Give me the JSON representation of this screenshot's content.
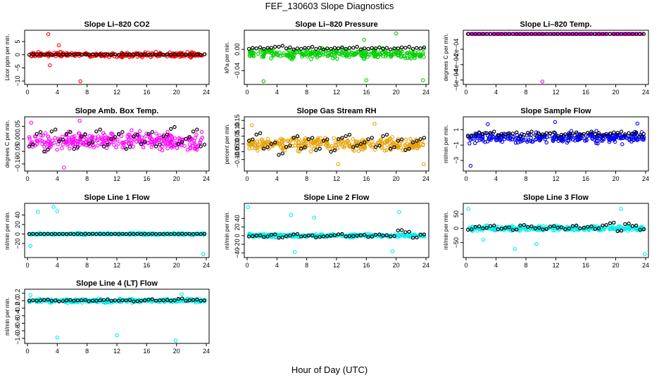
{
  "figure": {
    "title": "FEF_130603  Slope Diagnostics",
    "xlabel": "Hour of Day (UTC)"
  },
  "chart_data": [
    {
      "type": "scatter",
      "title": "Slope Li–820 CO2",
      "ylabel": "Licor ppm per min.",
      "xlim": [
        0,
        24
      ],
      "xticks": [
        0,
        4,
        8,
        12,
        16,
        20,
        24
      ],
      "ylim": [
        -10.5,
        8.5
      ],
      "yticks": [
        -10,
        -5,
        0,
        5
      ],
      "ytick_labels": [
        "−10",
        "−5",
        "0",
        "5"
      ],
      "color": "#ff0000",
      "center": 0,
      "spread": 1.2,
      "hourly": [
        0,
        0,
        0,
        0,
        0,
        0,
        0,
        0,
        0,
        0,
        0,
        0,
        0,
        0,
        0,
        0,
        0,
        0,
        0,
        0,
        0,
        0,
        0,
        0,
        0
      ],
      "outliers": [
        [
          2.8,
          7.8
        ],
        [
          3.0,
          -4.0
        ],
        [
          7.1,
          -10.1
        ],
        [
          4.2,
          3.6
        ]
      ]
    },
    {
      "type": "scatter",
      "title": "Slope Li–820 Pressure",
      "ylabel": "kPa per min.",
      "xlim": [
        0,
        24
      ],
      "xticks": [
        0,
        4,
        8,
        12,
        16,
        20,
        24
      ],
      "ylim": [
        -0.062,
        0.032
      ],
      "yticks": [
        -0.04,
        0.0
      ],
      "ytick_labels": [
        "−0.04",
        "0.00"
      ],
      "color": "#00d000",
      "center": -0.008,
      "spread": 0.012,
      "hourly": [
        0.001,
        0.002,
        0.001,
        0.003,
        0.005,
        0.002,
        0.0,
        0.001,
        0.003,
        0.001,
        0.0,
        0.001,
        0.002,
        0.001,
        0.003,
        0.0,
        0.001,
        0.002,
        0.001,
        0.0,
        0.002,
        0.003,
        0.001,
        0.002,
        0.001
      ],
      "outliers": [
        [
          2.2,
          -0.06
        ],
        [
          16.0,
          -0.058
        ],
        [
          20.0,
          0.03
        ],
        [
          23.6,
          -0.058
        ],
        [
          15.7,
          0.018
        ]
      ]
    },
    {
      "type": "scatter",
      "title": "Slope Li–820 Temp.",
      "ylabel": "degrees C per min.",
      "xlim": [
        0,
        24
      ],
      "xticks": [
        0,
        4,
        8,
        12,
        16,
        20,
        24
      ],
      "ylim": [
        -0.00063,
        2e-05
      ],
      "yticks": [
        -0.0006,
        -0.0004,
        -0.0002
      ],
      "ytick_labels": [
        "−6e−04",
        "−4e−04",
        "−2e−04"
      ],
      "color": "#ff00ff",
      "center": 0,
      "spread": 0,
      "hourly": [
        0,
        0,
        0,
        0,
        0,
        0,
        0,
        0,
        0,
        0,
        0,
        0,
        0,
        0,
        0,
        0,
        0,
        0,
        0,
        0,
        0,
        0,
        0,
        0,
        0
      ],
      "outliers": [
        [
          10.2,
          -0.00062
        ]
      ]
    },
    {
      "type": "scatter",
      "title": "Slope Amb. Box Temp.",
      "ylabel": "degrees C per min.",
      "xlim": [
        0,
        24
      ],
      "xticks": [
        0,
        4,
        8,
        12,
        16,
        20,
        24
      ],
      "ylim": [
        -0.12,
        0.08
      ],
      "yticks": [
        -0.1,
        -0.05,
        0.0,
        0.05
      ],
      "ytick_labels": [
        "−0.10",
        "−0.05",
        "0.00",
        "0.05"
      ],
      "color": "#ff00ff",
      "center": -0.01,
      "spread": 0.05,
      "hourly": [
        -0.03,
        0.02,
        -0.05,
        0.03,
        -0.01,
        0.02,
        -0.04,
        0.01,
        -0.02,
        0.03,
        -0.03,
        0.0,
        0.02,
        -0.04,
        0.01,
        -0.02,
        0.02,
        -0.03,
        0.01,
        0.04,
        -0.02,
        0.0,
        0.03,
        -0.03,
        -0.01
      ],
      "outliers": [
        [
          4.9,
          -0.115
        ],
        [
          0.5,
          0.065
        ],
        [
          7.0,
          0.072
        ]
      ]
    },
    {
      "type": "scatter",
      "title": "Slope Gas Stream RH",
      "ylabel": "percent per min.",
      "xlim": [
        0,
        24
      ],
      "xticks": [
        0,
        4,
        8,
        12,
        16,
        20,
        24
      ],
      "ylim": [
        -0.16,
        0.16
      ],
      "yticks": [
        -0.1,
        -0.05,
        0.0,
        0.05,
        0.1,
        0.15
      ],
      "ytick_labels": [
        "−0.10",
        "−0.05",
        "0.00",
        "0.05",
        "0.10",
        "0.15"
      ],
      "color": "#e8a000",
      "center": 0.0,
      "spread": 0.06,
      "hourly": [
        0.02,
        0.06,
        -0.03,
        0.0,
        -0.07,
        -0.02,
        0.04,
        -0.03,
        0.03,
        -0.04,
        0.02,
        -0.05,
        0.03,
        0.05,
        -0.02,
        0.0,
        0.03,
        -0.02,
        0.05,
        -0.03,
        0.02,
        -0.04,
        0.01,
        0.03,
        0.06
      ],
      "outliers": [
        [
          0.6,
          0.12
        ],
        [
          12.2,
          -0.13
        ],
        [
          23.7,
          -0.13
        ],
        [
          17.1,
          0.13
        ]
      ]
    },
    {
      "type": "scatter",
      "title": "Slope Sample Flow",
      "ylabel": "ml/min per min.",
      "xlim": [
        0,
        24
      ],
      "xticks": [
        0,
        4,
        8,
        12,
        16,
        20,
        24
      ],
      "ylim": [
        -4.1,
        2.4
      ],
      "yticks": [
        -3,
        -1,
        1
      ],
      "ytick_labels": [
        "−3",
        "−1",
        "1"
      ],
      "color": "#0000ee",
      "center": 0.0,
      "spread": 1.0,
      "hourly": [
        0.1,
        0.5,
        0.4,
        0.6,
        0.3,
        0.4,
        0.5,
        0.2,
        0.6,
        0.3,
        0.4,
        0.5,
        0.2,
        0.4,
        0.5,
        0.3,
        0.6,
        0.4,
        0.3,
        0.5,
        0.6,
        0.4,
        0.5,
        0.3,
        0.2
      ],
      "outliers": [
        [
          2.9,
          1.7
        ],
        [
          0.6,
          -3.7
        ],
        [
          11.9,
          2.0
        ],
        [
          22.9,
          1.8
        ]
      ]
    },
    {
      "type": "scatter",
      "title": "Slope Line 1 Flow",
      "ylabel": "ml/min per min.",
      "xlim": [
        0,
        24
      ],
      "xticks": [
        0,
        4,
        8,
        12,
        16,
        20,
        24
      ],
      "ylim": [
        -45,
        60
      ],
      "yticks": [
        -20,
        0,
        20,
        40
      ],
      "ytick_labels": [
        "−20",
        "0",
        "20",
        "40"
      ],
      "color": "#00eeee",
      "center": 0,
      "spread": 3,
      "hourly": [
        0,
        0,
        0,
        0,
        0,
        0,
        0,
        0,
        0,
        0,
        0,
        0,
        0,
        0,
        0,
        0,
        0,
        0,
        0,
        0,
        0,
        0,
        0,
        0,
        0
      ],
      "outliers": [
        [
          3.5,
          57
        ],
        [
          4.0,
          48
        ],
        [
          0.4,
          -25
        ],
        [
          23.6,
          -42
        ],
        [
          1.4,
          47
        ]
      ]
    },
    {
      "type": "scatter",
      "title": "Slope Line 2 Flow",
      "ylabel": "ml/min per min.",
      "xlim": [
        0,
        24
      ],
      "xticks": [
        0,
        4,
        8,
        12,
        16,
        20,
        24
      ],
      "ylim": [
        -46,
        70
      ],
      "yticks": [
        -40,
        -20,
        0,
        20,
        40
      ],
      "ytick_labels": [
        "−40",
        "−20",
        "0",
        "20",
        "40"
      ],
      "color": "#00eeee",
      "center": 0,
      "spread": 6,
      "hourly": [
        -2,
        0,
        -3,
        2,
        -5,
        -1,
        3,
        -2,
        0,
        -4,
        -2,
        0,
        3,
        -2,
        -1,
        1,
        -3,
        2,
        0,
        -2,
        12,
        8,
        -5,
        2,
        -3
      ],
      "outliers": [
        [
          0.1,
          66
        ],
        [
          5.9,
          48
        ],
        [
          9.0,
          42
        ],
        [
          6.4,
          -38
        ],
        [
          19.5,
          -36
        ],
        [
          20.4,
          55
        ]
      ]
    },
    {
      "type": "scatter",
      "title": "Slope Line 3 Flow",
      "ylabel": "ml/min per min.",
      "xlim": [
        0,
        24
      ],
      "xticks": [
        0,
        4,
        8,
        12,
        16,
        20,
        24
      ],
      "ylim": [
        -95,
        80
      ],
      "yticks": [
        -50,
        0,
        50
      ],
      "ytick_labels": [
        "−50",
        "0",
        "50"
      ],
      "color": "#00eeee",
      "center": 0,
      "spread": 12,
      "hourly": [
        -5,
        5,
        0,
        8,
        -3,
        2,
        -6,
        10,
        5,
        0,
        -4,
        6,
        2,
        -3,
        8,
        0,
        5,
        -2,
        10,
        18,
        -10,
        15,
        8,
        -5,
        3
      ],
      "outliers": [
        [
          0.3,
          68
        ],
        [
          6.5,
          -72
        ],
        [
          20.7,
          68
        ],
        [
          23.9,
          -90
        ],
        [
          9.4,
          -55
        ],
        [
          2.3,
          -40
        ]
      ]
    },
    {
      "type": "scatter",
      "title": "Slope Line 4 (LT) Flow",
      "ylabel": "ml/min per min.",
      "xlim": [
        0,
        24
      ],
      "xticks": [
        0,
        4,
        8,
        12,
        16,
        20,
        24
      ],
      "ylim": [
        -1.08,
        0.25
      ],
      "yticks": [
        -1.0,
        -0.8,
        -0.6,
        -0.4,
        -0.2,
        0.0,
        0.2
      ],
      "ytick_labels": [
        "−1.0",
        "−0.8",
        "−0.6",
        "−0.4",
        "−0.2",
        "0.0",
        "0.2"
      ],
      "color": "#00eeee",
      "center": 0.0,
      "spread": 0.07,
      "hourly": [
        0.0,
        0.0,
        0.02,
        0.0,
        -0.02,
        0.01,
        0.0,
        0.01,
        -0.01,
        0.0,
        0.02,
        0.0,
        0.0,
        0.01,
        -0.02,
        0.0,
        0.03,
        0.0,
        0.01,
        0.0,
        0.05,
        0.0,
        0.02,
        0.0,
        -0.02
      ],
      "outliers": [
        [
          4.0,
          -0.98
        ],
        [
          12.0,
          -0.92
        ],
        [
          19.9,
          -1.06
        ],
        [
          20.7,
          0.18
        ],
        [
          0.4,
          0.15
        ]
      ]
    }
  ]
}
